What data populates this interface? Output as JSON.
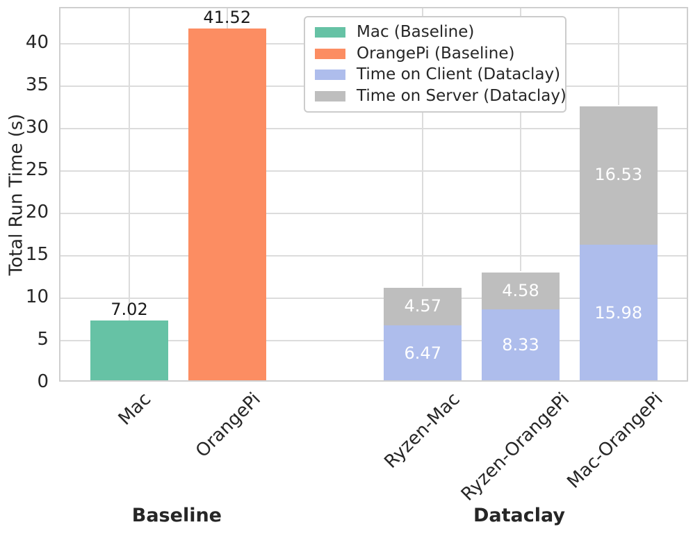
{
  "colors": {
    "background": "#ffffff",
    "grid": "#dcdcdc",
    "spine": "#cfcfcf",
    "tick_text": "#262626",
    "label_inside_bar": "#ffffff",
    "label_above_bar": "#1a1a1a"
  },
  "chart_data": {
    "type": "bar",
    "stacked": true,
    "title": "",
    "xlabel": "",
    "ylabel": "Total Run Time (s)",
    "ylim": [
      0,
      44.2
    ],
    "yticks": [
      0,
      5,
      10,
      15,
      20,
      25,
      30,
      35,
      40
    ],
    "grid": {
      "horizontal": true,
      "vertical_at_ticks": true
    },
    "legend": {
      "position": "upper center",
      "items": [
        {
          "label": "Mac (Baseline)",
          "color": "#66c2a5"
        },
        {
          "label": "OrangePi (Baseline)",
          "color": "#fc8d62"
        },
        {
          "label": "Time on Client (Dataclay)",
          "color": "#aebdec"
        },
        {
          "label": "Time on Server (Dataclay)",
          "color": "#bebebe"
        }
      ]
    },
    "bars": [
      {
        "category": "Mac",
        "slot": 0,
        "segments": [
          {
            "series": "Mac (Baseline)",
            "value": 7.02,
            "color": "#66c2a5",
            "label": "7.02",
            "label_placement": "above"
          }
        ]
      },
      {
        "category": "OrangePi",
        "slot": 1,
        "segments": [
          {
            "series": "OrangePi (Baseline)",
            "value": 41.52,
            "color": "#fc8d62",
            "label": "41.52",
            "label_placement": "above"
          }
        ]
      },
      {
        "category": "Ryzen-Mac",
        "slot": 3,
        "segments": [
          {
            "series": "Time on Client (Dataclay)",
            "value": 6.47,
            "color": "#aebdec",
            "label": "6.47",
            "label_placement": "center"
          },
          {
            "series": "Time on Server (Dataclay)",
            "value": 4.57,
            "color": "#bebebe",
            "label": "4.57",
            "label_placement": "center"
          }
        ]
      },
      {
        "category": "Ryzen-OrangePi",
        "slot": 4,
        "segments": [
          {
            "series": "Time on Client (Dataclay)",
            "value": 8.33,
            "color": "#aebdec",
            "label": "8.33",
            "label_placement": "center"
          },
          {
            "series": "Time on Server (Dataclay)",
            "value": 4.58,
            "color": "#bebebe",
            "label": "4.58",
            "label_placement": "center"
          }
        ]
      },
      {
        "category": "Mac-OrangePi",
        "slot": 5,
        "segments": [
          {
            "series": "Time on Client (Dataclay)",
            "value": 15.98,
            "color": "#aebdec",
            "label": "15.98",
            "label_placement": "center"
          },
          {
            "series": "Time on Server (Dataclay)",
            "value": 16.53,
            "color": "#bebebe",
            "label": "16.53",
            "label_placement": "center"
          }
        ]
      }
    ],
    "group_labels": [
      {
        "label": "Baseline",
        "slot_center": 0.5
      },
      {
        "label": "Dataclay",
        "slot_center": 4.0
      }
    ]
  }
}
